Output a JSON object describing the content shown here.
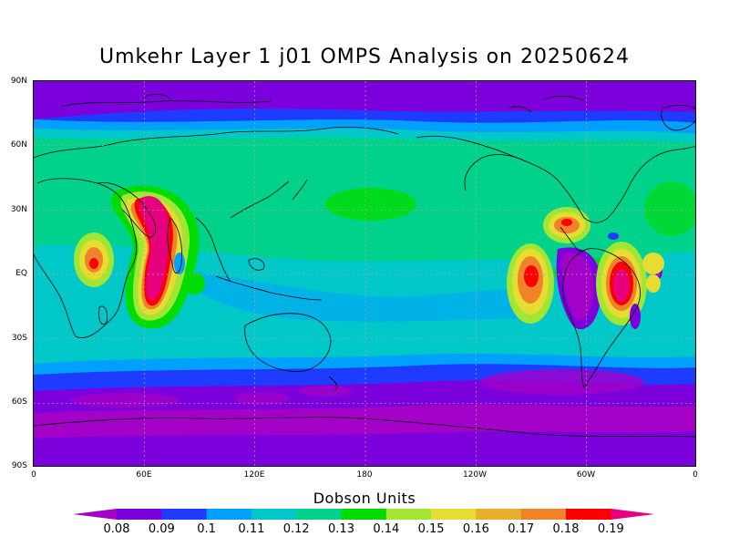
{
  "title": "Umkehr Layer 1 j01 OMPS Analysis on 20250624",
  "lat_labels": [
    "90N",
    "60N",
    "30N",
    "EQ",
    "30S",
    "60S",
    "90S"
  ],
  "lon_labels": [
    "0",
    "60E",
    "120E",
    "180",
    "120W",
    "60W",
    "0"
  ],
  "colorbar": {
    "title": "Dobson Units",
    "labels": [
      "0.08",
      "0.09",
      "0.1",
      "0.11",
      "0.12",
      "0.13",
      "0.14",
      "0.15",
      "0.16",
      "0.17",
      "0.18",
      "0.19"
    ],
    "colors": [
      "#a300c8",
      "#7b00dc",
      "#1e3cff",
      "#00a0ff",
      "#00c8c8",
      "#00d28c",
      "#00dc00",
      "#a0e632",
      "#e6dc32",
      "#e6af2d",
      "#f08228",
      "#fa0000",
      "#e6007d"
    ]
  }
}
